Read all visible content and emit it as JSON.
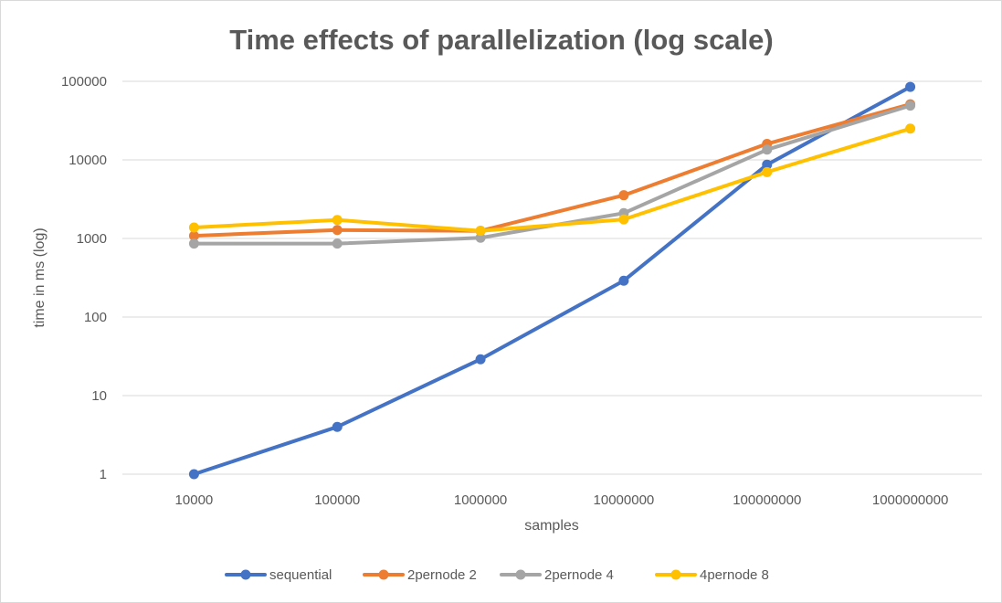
{
  "chart_data": {
    "type": "line",
    "title": "Time effects of parallelization (log scale)",
    "xlabel": "samples",
    "ylabel": "time in ms (log)",
    "y_scale": "log",
    "ylim": [
      1,
      100000
    ],
    "y_ticks": [
      "1",
      "10",
      "100",
      "1000",
      "10000",
      "100000"
    ],
    "grid": "horizontal",
    "legend_position": "bottom",
    "categories": [
      "10000",
      "100000",
      "1000000",
      "10000000",
      "100000000",
      "1000000000"
    ],
    "series": [
      {
        "name": "sequential",
        "color": "#4472C4",
        "values": [
          1,
          4,
          29,
          290,
          8700,
          85000
        ]
      },
      {
        "name": "2pernode 2",
        "color": "#ED7D31",
        "values": [
          1080,
          1280,
          1250,
          3550,
          16000,
          51000
        ]
      },
      {
        "name": "2pernode 4",
        "color": "#A5A5A5",
        "values": [
          860,
          860,
          1020,
          2100,
          13500,
          49000
        ]
      },
      {
        "name": "4pernode 8",
        "color": "#FFC000",
        "values": [
          1380,
          1720,
          1250,
          1750,
          7000,
          25000
        ]
      }
    ]
  }
}
